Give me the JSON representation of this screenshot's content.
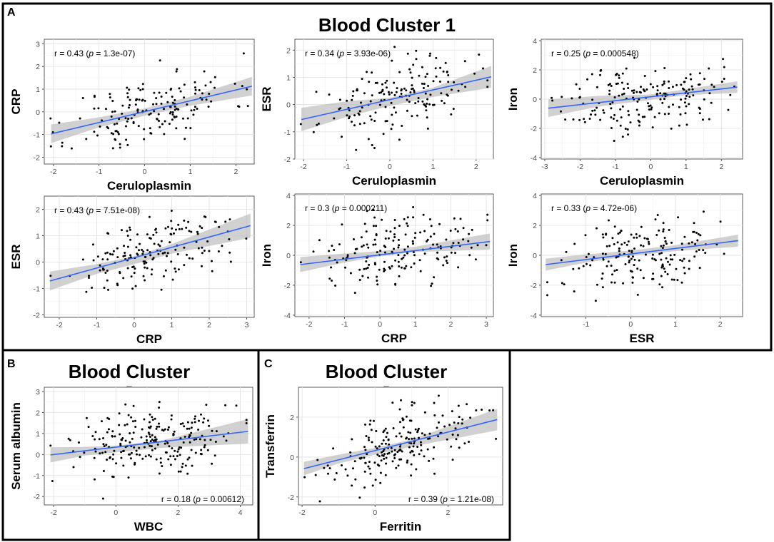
{
  "figure": {
    "panel_labels": [
      "A",
      "B",
      "C"
    ],
    "cluster_title_a": "Blood Cluster 1",
    "cluster_title_b": "Blood Cluster",
    "cluster_subtitle_b": "_",
    "cluster_title_c": "Blood Cluster",
    "cluster_subtitle_c": "_"
  },
  "colors": {
    "fit_line": "#3366ff",
    "ci_band": "#bdbdbd",
    "points": "#000000",
    "frame": "#000000"
  },
  "chart_data": [
    {
      "id": "a1",
      "type": "scatter",
      "xlabel": "Ceruloplasmin",
      "ylabel": "CRP",
      "xlim": [
        -2.2,
        2.4
      ],
      "ylim": [
        -2.3,
        3.2
      ],
      "xticks": [
        -2,
        -1,
        0,
        1,
        2
      ],
      "yticks": [
        -2,
        -1,
        0,
        1,
        2,
        3
      ],
      "annotation": {
        "r": "0.43",
        "p": "1.3e-07",
        "position": "top-left"
      },
      "fit": {
        "x": [
          -2.05,
          2.35
        ],
        "y": [
          -0.97,
          1.13
        ]
      },
      "ci": {
        "x": [
          -2.05,
          -1.0,
          0.0,
          1.0,
          2.35
        ],
        "lower": [
          -1.38,
          -0.68,
          -0.17,
          0.27,
          0.72
        ],
        "upper": [
          -0.56,
          -0.24,
          0.15,
          0.67,
          1.54
        ]
      },
      "n_points": 170,
      "seed": 11
    },
    {
      "id": "a2",
      "type": "scatter",
      "xlabel": "Ceruloplasmin",
      "ylabel": "ESR",
      "xlim": [
        -2.2,
        2.4
      ],
      "ylim": [
        -2.0,
        2.4
      ],
      "xticks": [
        -2,
        -1,
        0,
        1,
        2
      ],
      "yticks": [
        -2,
        -1,
        0,
        1,
        2
      ],
      "annotation": {
        "r": "0.34",
        "p": "3.93e-06",
        "position": "top-left"
      },
      "fit": {
        "x": [
          -2.05,
          2.35
        ],
        "y": [
          -0.55,
          1.02
        ]
      },
      "ci": {
        "x": [
          -2.05,
          -1.0,
          0.0,
          1.0,
          2.35
        ],
        "lower": [
          -0.98,
          -0.45,
          -0.05,
          0.28,
          0.62
        ],
        "upper": [
          -0.12,
          0.12,
          0.25,
          0.62,
          1.42
        ]
      },
      "n_points": 170,
      "seed": 23
    },
    {
      "id": "a3",
      "type": "scatter",
      "xlabel": "Ceruloplasmin",
      "ylabel": "Iron",
      "xlim": [
        -3.1,
        2.6
      ],
      "ylim": [
        -4.1,
        4.1
      ],
      "xticks": [
        -3,
        -2,
        -1,
        0,
        1,
        2
      ],
      "yticks": [
        -4,
        -2,
        0,
        2,
        4
      ],
      "annotation": {
        "r": "0.25",
        "p": "0.000548",
        "position": "top-left"
      },
      "fit": {
        "x": [
          -2.9,
          2.45
        ],
        "y": [
          -0.62,
          0.82
        ]
      },
      "ci": {
        "x": [
          -2.9,
          -1.5,
          0.0,
          1.0,
          2.45
        ],
        "lower": [
          -1.22,
          -0.52,
          -0.05,
          0.28,
          0.42
        ],
        "upper": [
          -0.02,
          0.22,
          0.32,
          0.68,
          1.22
        ]
      },
      "n_points": 190,
      "seed": 37
    },
    {
      "id": "a4",
      "type": "scatter",
      "xlabel": "CRP",
      "ylabel": "ESR",
      "xlim": [
        -2.4,
        3.2
      ],
      "ylim": [
        -2.1,
        2.5
      ],
      "xticks": [
        -2,
        -1,
        0,
        1,
        2,
        3
      ],
      "yticks": [
        -2,
        -1,
        0,
        1,
        2
      ],
      "annotation": {
        "r": "0.43",
        "p": "7.51e-08",
        "position": "top-left"
      },
      "fit": {
        "x": [
          -2.25,
          3.1
        ],
        "y": [
          -0.72,
          1.38
        ]
      },
      "ci": {
        "x": [
          -2.25,
          -1.0,
          0.0,
          1.0,
          3.1
        ],
        "lower": [
          -1.08,
          -0.45,
          -0.08,
          0.32,
          0.92
        ],
        "upper": [
          -0.36,
          -0.08,
          0.22,
          0.68,
          1.84
        ]
      },
      "n_points": 170,
      "seed": 51
    },
    {
      "id": "a5",
      "type": "scatter",
      "xlabel": "CRP",
      "ylabel": "Iron",
      "xlim": [
        -2.4,
        3.2
      ],
      "ylim": [
        -4.1,
        4.1
      ],
      "xticks": [
        -2,
        -1,
        0,
        1,
        2,
        3
      ],
      "yticks": [
        -4,
        -2,
        0,
        2,
        4
      ],
      "annotation": {
        "r": "0.3",
        "p": "0.000211",
        "position": "top-left"
      },
      "fit": {
        "x": [
          -2.25,
          3.1
        ],
        "y": [
          -0.62,
          0.92
        ]
      },
      "ci": {
        "x": [
          -2.25,
          -1.0,
          0.0,
          1.0,
          3.1
        ],
        "lower": [
          -1.12,
          -0.48,
          -0.08,
          0.22,
          0.38
        ],
        "upper": [
          -0.12,
          0.12,
          0.28,
          0.58,
          1.46
        ]
      },
      "n_points": 180,
      "seed": 67
    },
    {
      "id": "a6",
      "type": "scatter",
      "xlabel": "ESR",
      "ylabel": "Iron",
      "xlim": [
        -2.0,
        2.5
      ],
      "ylim": [
        -4.1,
        4.1
      ],
      "xticks": [
        -1,
        0,
        1,
        2
      ],
      "yticks": [
        -4,
        -2,
        0,
        2,
        4
      ],
      "annotation": {
        "r": "0.33",
        "p": "4.72e-06",
        "position": "top-left"
      },
      "fit": {
        "x": [
          -1.9,
          2.4
        ],
        "y": [
          -0.62,
          0.98
        ]
      },
      "ci": {
        "x": [
          -1.9,
          -1.0,
          0.0,
          1.0,
          2.4
        ],
        "lower": [
          -1.02,
          -0.48,
          -0.05,
          0.28,
          0.58
        ],
        "upper": [
          -0.22,
          0.06,
          0.32,
          0.68,
          1.38
        ]
      },
      "n_points": 180,
      "seed": 79
    },
    {
      "id": "b1",
      "type": "scatter",
      "xlabel": "WBC",
      "ylabel": "Serum albumin",
      "xlim": [
        -2.3,
        4.4
      ],
      "ylim": [
        -2.4,
        3.2
      ],
      "xticks": [
        -2,
        0,
        2,
        4
      ],
      "yticks": [
        -2,
        -1,
        0,
        1,
        2,
        3
      ],
      "annotation": {
        "r": "0.18",
        "p": "0.00612",
        "position": "bottom-right"
      },
      "fit": {
        "x": [
          -2.1,
          4.25
        ],
        "y": [
          -0.02,
          1.1
        ]
      },
      "ci": {
        "x": [
          -2.1,
          -1.0,
          0.0,
          1.5,
          4.25
        ],
        "lower": [
          -0.38,
          -0.05,
          0.1,
          0.32,
          0.52
        ],
        "upper": [
          0.34,
          0.36,
          0.42,
          0.68,
          1.68
        ]
      },
      "n_points": 230,
      "seed": 91
    },
    {
      "id": "c1",
      "type": "scatter",
      "xlabel": "Ferritin",
      "ylabel": "Transferrin",
      "xlim": [
        -2.1,
        3.5
      ],
      "ylim": [
        -2.4,
        3.5
      ],
      "xticks": [
        -2,
        0,
        2
      ],
      "yticks": [
        -2,
        0,
        2
      ],
      "annotation": {
        "r": "0.39",
        "p": "1.21e-08",
        "position": "bottom-right"
      },
      "fit": {
        "x": [
          -1.95,
          3.35
        ],
        "y": [
          -0.58,
          1.88
        ]
      },
      "ci": {
        "x": [
          -1.95,
          -1.0,
          0.0,
          1.0,
          3.35
        ],
        "lower": [
          -0.92,
          -0.32,
          0.12,
          0.52,
          1.34
        ],
        "upper": [
          -0.24,
          0.12,
          0.46,
          0.88,
          2.42
        ]
      },
      "n_points": 200,
      "seed": 103
    }
  ]
}
